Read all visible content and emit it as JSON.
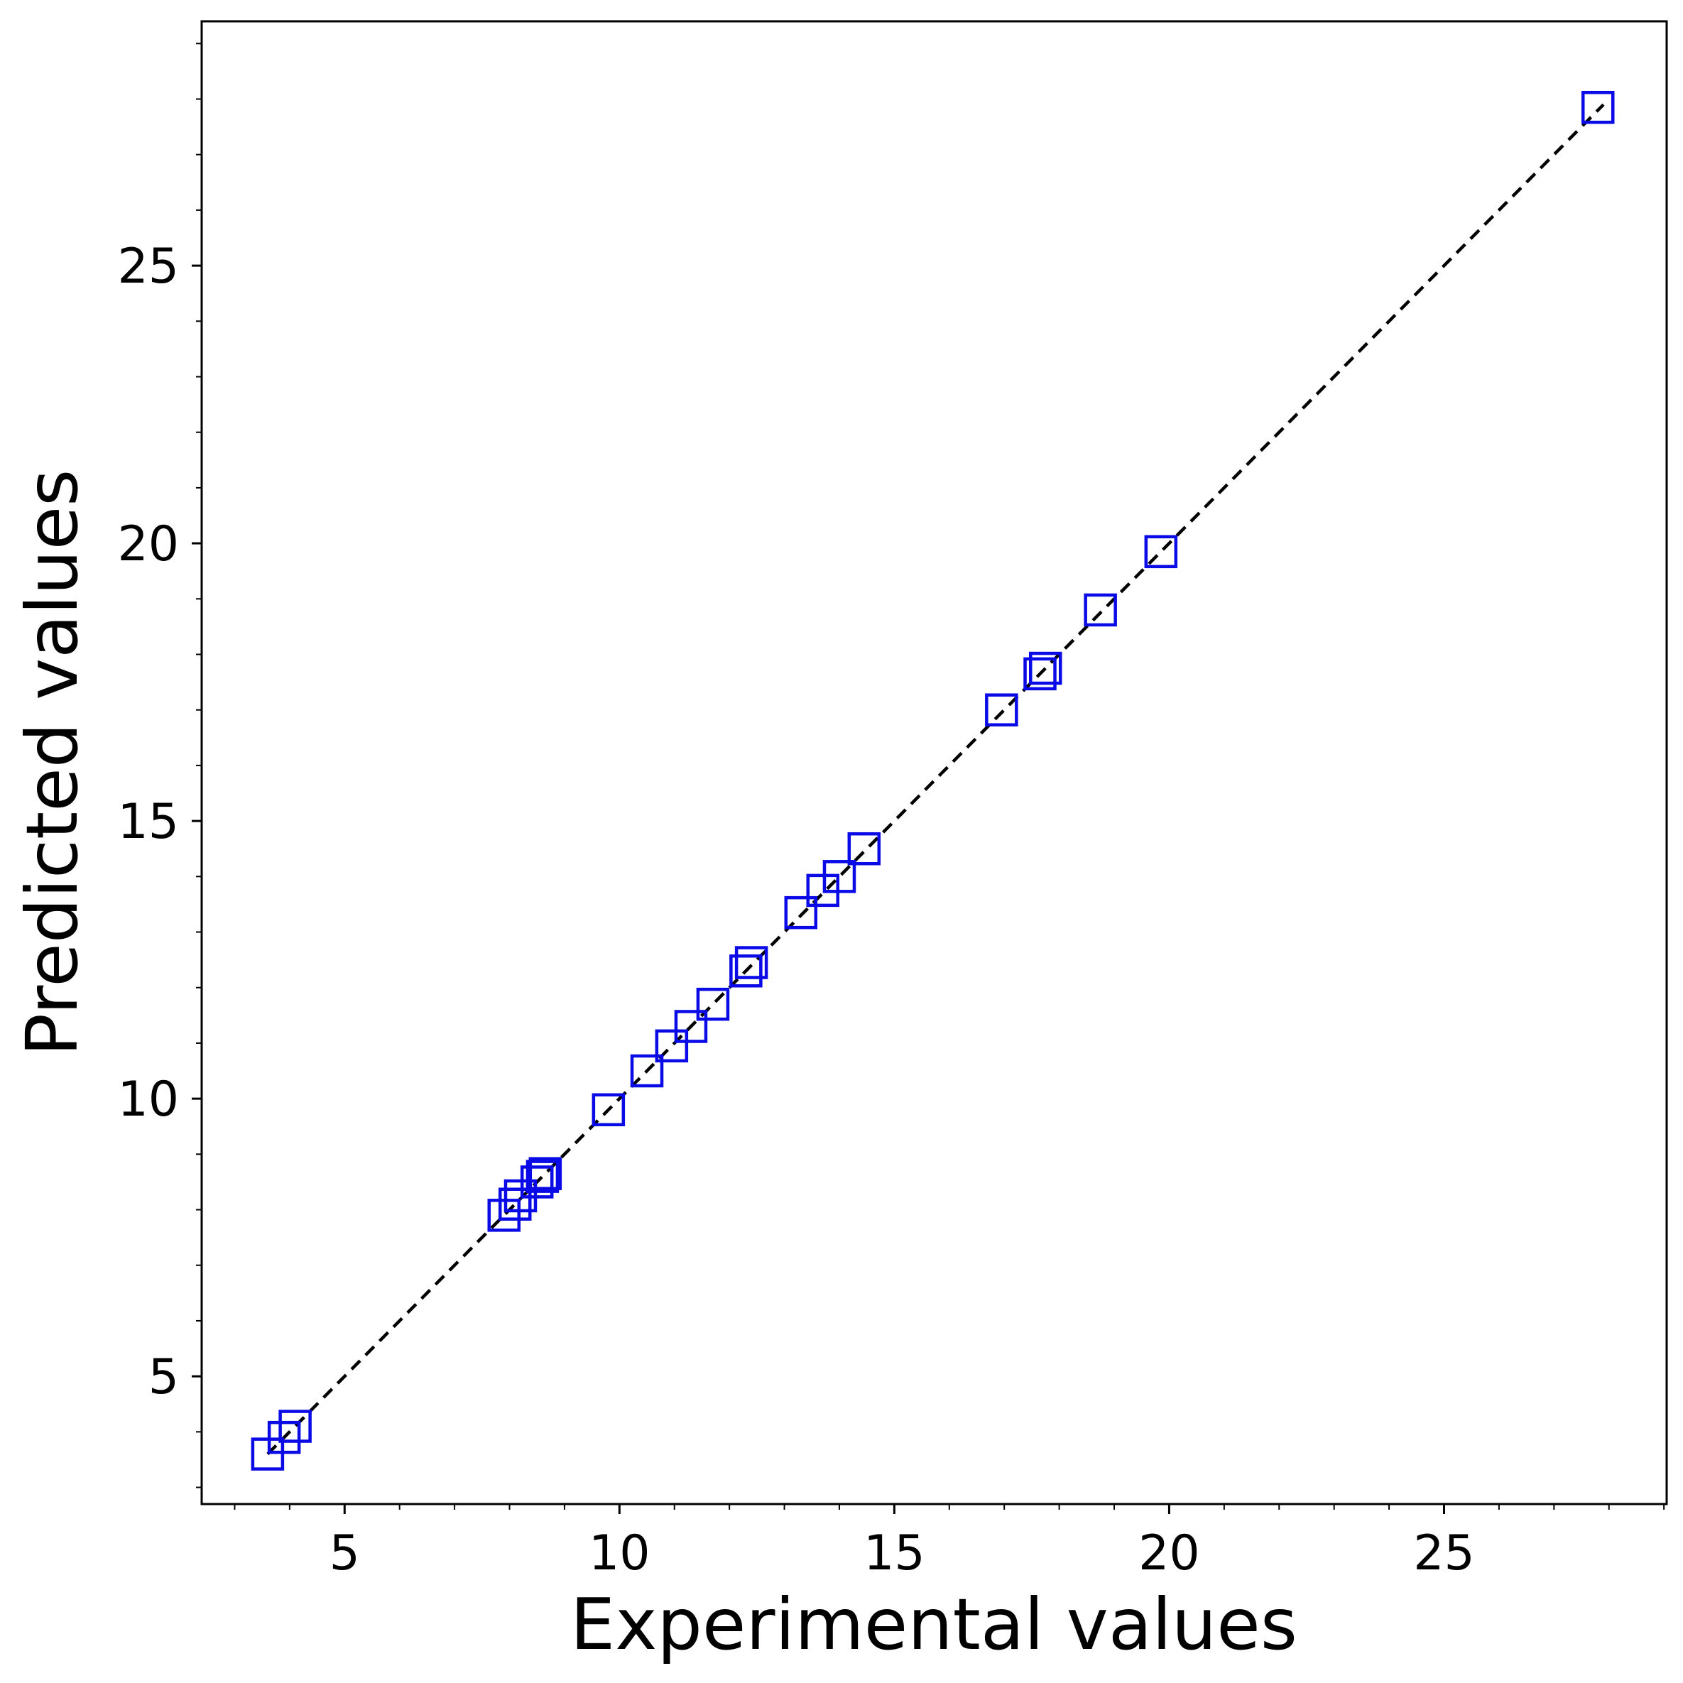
{
  "chart_data": {
    "type": "scatter",
    "xlabel": "Experimental values",
    "ylabel": "Predicted values",
    "xlim": [
      2.4,
      29.05
    ],
    "ylim": [
      2.7,
      29.4
    ],
    "xticks": [
      5,
      10,
      15,
      20,
      25
    ],
    "yticks": [
      5,
      10,
      15,
      20,
      25
    ],
    "minor_tick_step": 1,
    "grid": false,
    "marker": "hollow-square",
    "marker_color": "#0a0ae6",
    "line_color": "#000000",
    "reference_line": {
      "style": "dashed",
      "from": [
        3.6,
        3.6
      ],
      "to": [
        27.9,
        27.9
      ]
    },
    "points": [
      {
        "x": 3.6,
        "y": 3.6
      },
      {
        "x": 3.9,
        "y": 3.9
      },
      {
        "x": 4.1,
        "y": 4.1
      },
      {
        "x": 7.9,
        "y": 7.9
      },
      {
        "x": 8.1,
        "y": 8.1
      },
      {
        "x": 8.2,
        "y": 8.25
      },
      {
        "x": 8.5,
        "y": 8.5
      },
      {
        "x": 8.6,
        "y": 8.6
      },
      {
        "x": 8.65,
        "y": 8.65
      },
      {
        "x": 9.8,
        "y": 9.8
      },
      {
        "x": 10.5,
        "y": 10.5
      },
      {
        "x": 10.95,
        "y": 10.95
      },
      {
        "x": 11.3,
        "y": 11.3
      },
      {
        "x": 11.7,
        "y": 11.7
      },
      {
        "x": 12.3,
        "y": 12.3
      },
      {
        "x": 12.4,
        "y": 12.45
      },
      {
        "x": 13.3,
        "y": 13.35
      },
      {
        "x": 13.7,
        "y": 13.75
      },
      {
        "x": 14.0,
        "y": 14.0
      },
      {
        "x": 14.45,
        "y": 14.5
      },
      {
        "x": 16.95,
        "y": 17.0
      },
      {
        "x": 17.65,
        "y": 17.65
      },
      {
        "x": 17.75,
        "y": 17.75
      },
      {
        "x": 18.75,
        "y": 18.8
      },
      {
        "x": 19.85,
        "y": 19.85
      },
      {
        "x": 27.8,
        "y": 27.85
      }
    ]
  }
}
